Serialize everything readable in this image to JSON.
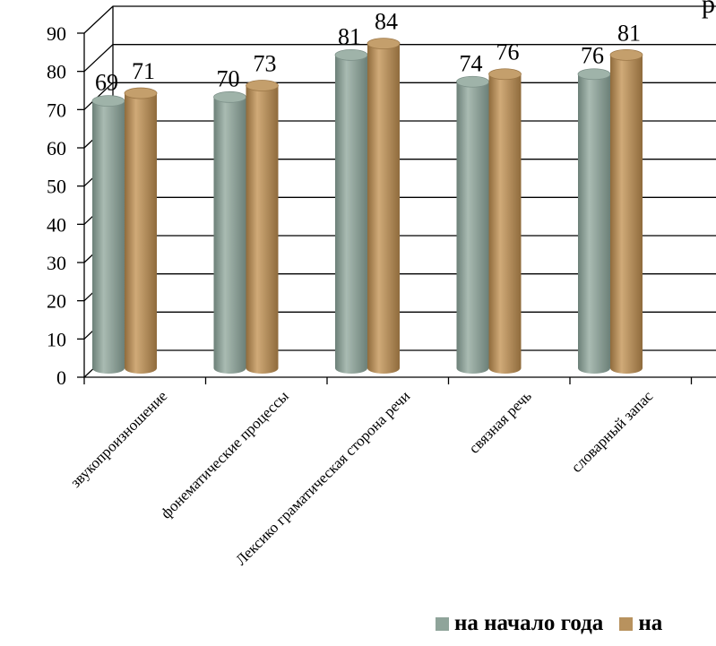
{
  "chart_data": {
    "type": "bar",
    "title": "",
    "xlabel": "",
    "ylabel": "",
    "ylim": [
      0,
      90
    ],
    "yticks": [
      "0",
      "10",
      "20",
      "30",
      "40",
      "50",
      "60",
      "70",
      "80",
      "90"
    ],
    "categories": [
      "звукопроизношение",
      "фонематические процессы",
      "Лексико граматическая сторона речи",
      "связная речь",
      "словарный запас"
    ],
    "series": [
      {
        "name": "на начало года",
        "color": "#8fa49a",
        "values": [
          69,
          70,
          81,
          74,
          76
        ]
      },
      {
        "name": "на",
        "color": "#b8925e",
        "values": [
          71,
          73,
          84,
          76,
          81
        ]
      }
    ],
    "grid": true,
    "style": "3d-cylinder",
    "legend_position": "bottom"
  },
  "corner_text": "р"
}
